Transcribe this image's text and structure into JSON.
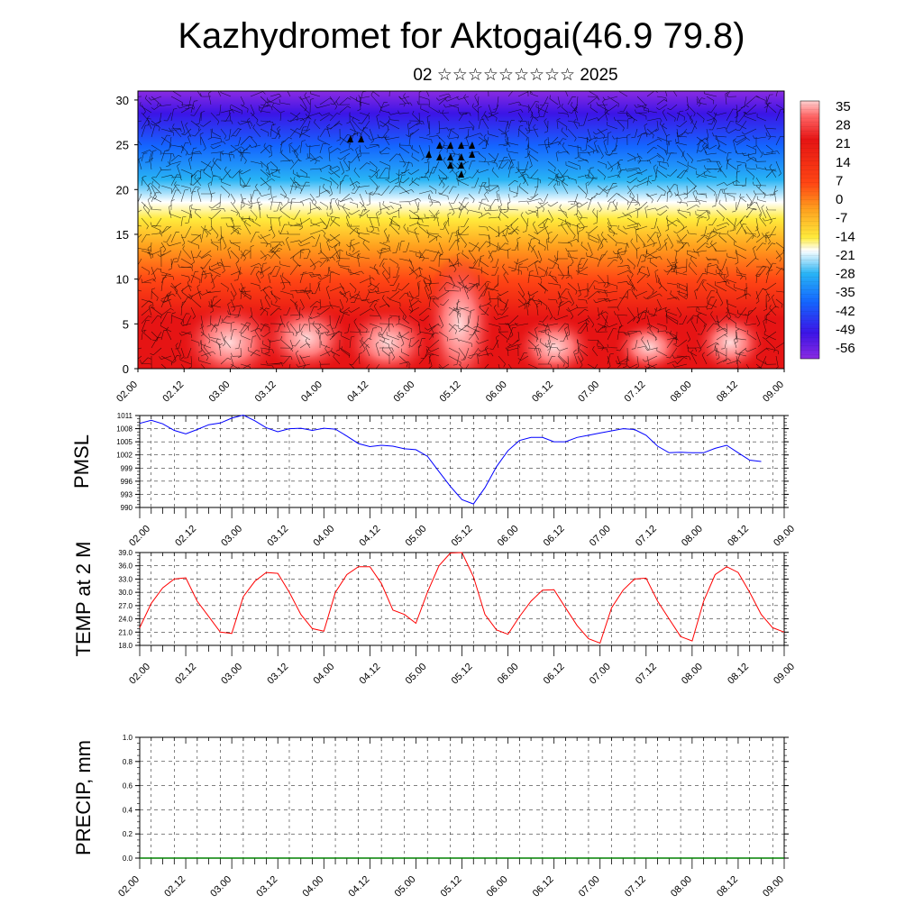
{
  "title": "Kazhydromet for Aktogai(46.9 79.8)",
  "subtitle": "02 ☆☆☆☆☆☆☆☆☆ 2025",
  "time_labels": [
    "02.00",
    "02.12",
    "03.00",
    "03.12",
    "04.00",
    "04.12",
    "05.00",
    "05.12",
    "06.00",
    "06.12",
    "07.00",
    "07.12",
    "08.00",
    "08.12",
    "09.00"
  ],
  "chart_data": [
    {
      "type": "heatmap",
      "name": "cross-section",
      "y_ticks": [
        "0",
        "5",
        "10",
        "15",
        "20",
        "25",
        "30"
      ],
      "ylim": [
        0,
        31
      ],
      "colorbar_labels": [
        "35",
        "28",
        "21",
        "14",
        "7",
        "0",
        "-7",
        "-14",
        "-21",
        "-28",
        "-35",
        "-42",
        "-49",
        "-56"
      ],
      "colorbar_range": [
        -63,
        42
      ],
      "description_overlay": "wind barbs"
    },
    {
      "type": "line",
      "ylabel": "PMSL",
      "y_ticks": [
        "1011",
        "1008",
        "1005",
        "1002",
        "999",
        "996",
        "993",
        "990"
      ],
      "ylim": [
        990,
        1011
      ],
      "color": "#0000ff",
      "x": [
        0,
        3,
        6,
        9,
        12,
        15,
        18,
        21,
        24,
        27,
        30,
        33,
        36,
        39,
        42,
        45,
        48,
        51,
        54,
        57,
        60,
        63,
        66,
        69,
        72,
        75,
        78,
        81,
        84,
        87,
        90,
        93,
        96,
        99,
        102,
        105,
        108,
        111,
        114,
        117,
        120,
        123,
        126,
        129,
        132,
        135,
        138,
        141,
        144,
        147,
        150,
        153,
        156,
        159,
        162
      ],
      "values": [
        1009.2,
        1009.9,
        1009.1,
        1007.6,
        1006.8,
        1007.8,
        1008.9,
        1009.3,
        1010.4,
        1011.1,
        1009.8,
        1008.2,
        1007.3,
        1008.0,
        1008.1,
        1007.6,
        1008.1,
        1007.9,
        1006.3,
        1004.6,
        1003.9,
        1004.2,
        1004.0,
        1003.4,
        1003.2,
        1001.7,
        998.2,
        994.8,
        991.8,
        990.8,
        994.5,
        999.3,
        1003.0,
        1005.3,
        1006.0,
        1006.0,
        1005.0,
        1005.0,
        1006.0,
        1006.5,
        1007.0,
        1007.5,
        1008.0,
        1007.8,
        1006.5,
        1004.0,
        1002.5,
        1002.6,
        1002.5,
        1002.5,
        1003.5,
        1004.2,
        1002.5,
        1000.8,
        1000.5
      ]
    },
    {
      "type": "line",
      "ylabel": "TEMP at 2 M",
      "y_ticks": [
        "39.0",
        "36.0",
        "33.0",
        "30.0",
        "27.0",
        "24.0",
        "21.0",
        "18.0"
      ],
      "ylim": [
        18,
        39
      ],
      "color": "#ff0000",
      "x": [
        0,
        3,
        6,
        9,
        12,
        15,
        18,
        21,
        24,
        27,
        30,
        33,
        36,
        39,
        42,
        45,
        48,
        51,
        54,
        57,
        60,
        63,
        66,
        69,
        72,
        75,
        78,
        81,
        84,
        87,
        90,
        93,
        96,
        99,
        102,
        105,
        108,
        111,
        114,
        117,
        120,
        123,
        126,
        129,
        132,
        135,
        138,
        141,
        144,
        147,
        150,
        153,
        156,
        159,
        162,
        165,
        168
      ],
      "values": [
        22.0,
        27.5,
        31.0,
        33.0,
        33.3,
        28.0,
        24.5,
        21.0,
        20.7,
        29.0,
        32.5,
        34.5,
        34.3,
        30.0,
        25.0,
        21.8,
        21.2,
        30.0,
        34.0,
        35.8,
        35.8,
        32.0,
        26.0,
        25.0,
        23.0,
        30.0,
        36.0,
        38.9,
        39.0,
        33.5,
        25.0,
        21.5,
        20.5,
        24.5,
        28.0,
        30.5,
        30.6,
        26.5,
        22.5,
        19.5,
        18.5,
        26.5,
        30.5,
        33.0,
        33.2,
        28.0,
        24.0,
        20.0,
        19.0,
        28.0,
        34.0,
        35.8,
        34.5,
        30.0,
        25.0,
        22.0,
        21.0
      ]
    },
    {
      "type": "line",
      "ylabel": "PRECIP, mm",
      "y_ticks": [
        "1.0",
        "0.8",
        "0.6",
        "0.4",
        "0.2",
        "0.0"
      ],
      "ylim": [
        0,
        1
      ],
      "color": "#008000",
      "x": [
        0,
        168
      ],
      "values": [
        0,
        0
      ]
    }
  ],
  "colors": {
    "pmsl_line": "#0000ff",
    "temp_line": "#ff0000",
    "precip_line": "#008000"
  }
}
